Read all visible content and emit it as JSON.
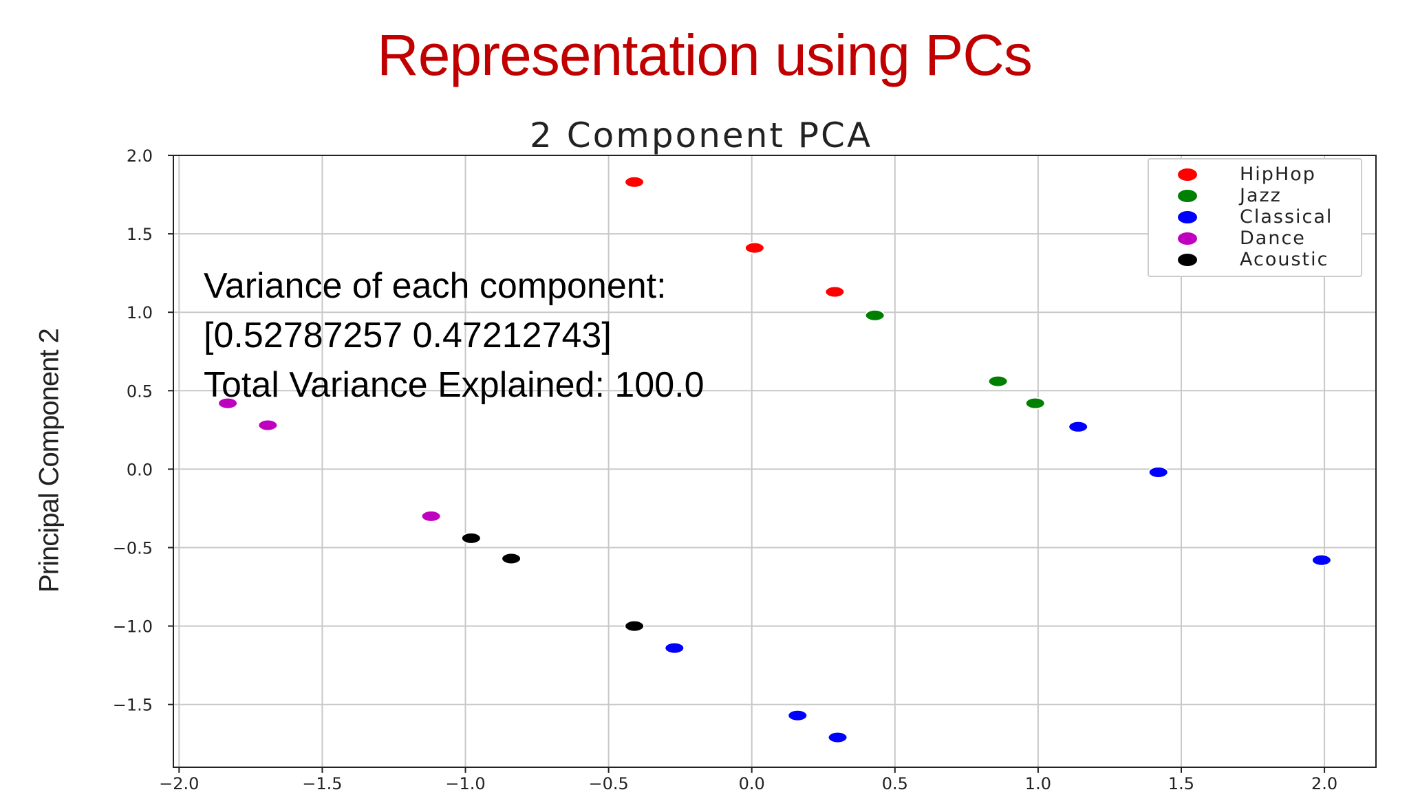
{
  "slide_title": "Representation using PCs",
  "annotation": {
    "line1": "Variance of each component:",
    "line2": "[0.52787257 0.47212743]",
    "line3": "Total Variance Explained: 100.0"
  },
  "chart_data": {
    "type": "scatter",
    "title": "2 Component PCA",
    "xlabel": "",
    "ylabel": "Principal Component 2",
    "xlim": [
      -2.02,
      2.18
    ],
    "ylim": [
      -1.9,
      2.0
    ],
    "xticks": [
      "−2.0",
      "−1.5",
      "−1.0",
      "−0.5",
      "0.0",
      "0.5",
      "1.0",
      "1.5",
      "2.0"
    ],
    "xtick_values": [
      -2.0,
      -1.5,
      -1.0,
      -0.5,
      0.0,
      0.5,
      1.0,
      1.5,
      2.0
    ],
    "yticks": [
      "2.0",
      "1.5",
      "1.0",
      "0.5",
      "0.0",
      "−0.5",
      "−1.0",
      "−1.5"
    ],
    "ytick_values": [
      2.0,
      1.5,
      1.0,
      0.5,
      0.0,
      -0.5,
      -1.0,
      -1.5
    ],
    "grid": true,
    "legend_position": "top-right",
    "series": [
      {
        "name": "HipHop",
        "color": "#ff0000",
        "points": [
          [
            -0.41,
            1.83
          ],
          [
            0.01,
            1.41
          ],
          [
            0.29,
            1.13
          ]
        ]
      },
      {
        "name": "Jazz",
        "color": "#008000",
        "points": [
          [
            0.43,
            0.98
          ],
          [
            0.86,
            0.56
          ],
          [
            0.99,
            0.42
          ]
        ]
      },
      {
        "name": "Classical",
        "color": "#0000ff",
        "points": [
          [
            1.14,
            0.27
          ],
          [
            1.42,
            -0.02
          ],
          [
            1.99,
            -0.58
          ],
          [
            -0.27,
            -1.14
          ],
          [
            0.16,
            -1.57
          ],
          [
            0.3,
            -1.71
          ]
        ]
      },
      {
        "name": "Dance",
        "color": "#bf00bf",
        "points": [
          [
            -1.83,
            0.42
          ],
          [
            -1.69,
            0.28
          ],
          [
            -1.12,
            -0.3
          ]
        ]
      },
      {
        "name": "Acoustic",
        "color": "#000000",
        "points": [
          [
            -0.98,
            -0.44
          ],
          [
            -0.84,
            -0.57
          ],
          [
            -0.41,
            -1.0
          ]
        ]
      }
    ]
  }
}
